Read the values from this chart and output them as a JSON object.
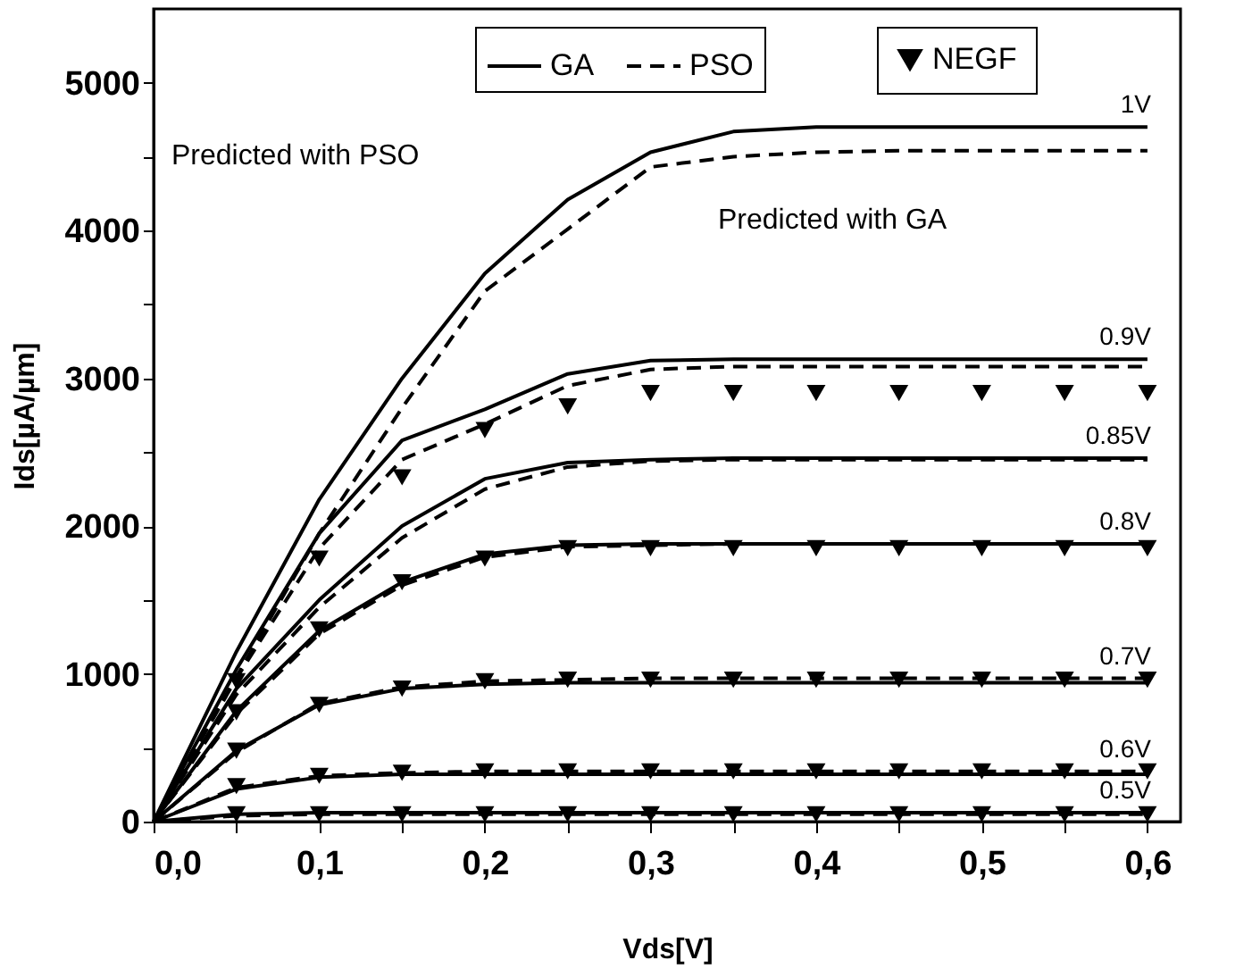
{
  "chart_data": {
    "type": "line",
    "xlabel": "Vds[V]",
    "ylabel": "Ids[µA/µm]",
    "x": [
      0,
      0.05,
      0.1,
      0.15,
      0.2,
      0.25,
      0.3,
      0.35,
      0.4,
      0.45,
      0.5,
      0.55,
      0.6
    ],
    "xlim": [
      0,
      0.62
    ],
    "ylim": [
      0,
      5500
    ],
    "xticks": [
      {
        "value": 0,
        "label": "0,0"
      },
      {
        "value": 0.05,
        "label": null
      },
      {
        "value": 0.1,
        "label": "0,1"
      },
      {
        "value": 0.15,
        "label": null
      },
      {
        "value": 0.2,
        "label": "0,2"
      },
      {
        "value": 0.25,
        "label": null
      },
      {
        "value": 0.3,
        "label": "0,3"
      },
      {
        "value": 0.35,
        "label": null
      },
      {
        "value": 0.4,
        "label": "0,4"
      },
      {
        "value": 0.45,
        "label": null
      },
      {
        "value": 0.5,
        "label": "0,5"
      },
      {
        "value": 0.55,
        "label": null
      },
      {
        "value": 0.6,
        "label": "0,6"
      }
    ],
    "yticks": [
      0,
      {
        "value": 500,
        "label": null
      },
      1000,
      {
        "value": 1500,
        "label": null
      },
      2000,
      {
        "value": 2500,
        "label": null
      },
      3000,
      {
        "value": 3500,
        "label": null
      },
      4000,
      {
        "value": 4500,
        "label": null
      },
      5000
    ],
    "legend": "top right",
    "grid": false,
    "series": [
      {
        "name": "GA",
        "color": "#000000",
        "line_style": "solid",
        "values": [
          0,
          1150,
          2180,
          3000,
          3710,
          4210,
          4530,
          4670,
          4700,
          4700,
          4700,
          4700,
          4700
        ]
      },
      {
        "name": "PSO",
        "color": "#000000",
        "line_style": "dashed",
        "values": [
          0,
          980,
          1950,
          2800,
          3590,
          4010,
          4430,
          4500,
          4530,
          4540,
          4540,
          4540,
          4540
        ]
      },
      {
        "color": "#000000",
        "line_style": "solid",
        "values": [
          0,
          1030,
          1950,
          2580,
          2790,
          3030,
          3120,
          3130,
          3130,
          3130,
          3130,
          3130,
          3130
        ]
      },
      {
        "color": "#000000",
        "line_style": "dashed",
        "values": [
          0,
          970,
          1850,
          2450,
          2690,
          2950,
          3060,
          3080,
          3080,
          3080,
          3080,
          3080,
          3080
        ]
      },
      {
        "color": "#000000",
        "line_style": "solid",
        "values": [
          0,
          900,
          1500,
          2000,
          2320,
          2430,
          2450,
          2460,
          2460,
          2460,
          2460,
          2460,
          2460
        ]
      },
      {
        "color": "#000000",
        "line_style": "dashed",
        "values": [
          0,
          860,
          1450,
          1920,
          2250,
          2400,
          2440,
          2450,
          2450,
          2450,
          2450,
          2450,
          2450
        ]
      },
      {
        "color": "#000000",
        "line_style": "solid",
        "values": [
          0,
          750,
          1290,
          1620,
          1810,
          1870,
          1880,
          1880,
          1880,
          1880,
          1880,
          1880,
          1880
        ]
      },
      {
        "color": "#000000",
        "line_style": "dashed",
        "values": [
          0,
          730,
          1270,
          1600,
          1790,
          1860,
          1870,
          1880,
          1880,
          1880,
          1880,
          1880,
          1880
        ]
      },
      {
        "color": "#000000",
        "line_style": "solid",
        "values": [
          0,
          480,
          790,
          900,
          930,
          940,
          940,
          940,
          940,
          940,
          940,
          940,
          940
        ]
      },
      {
        "color": "#000000",
        "line_style": "dashed",
        "values": [
          0,
          470,
          800,
          910,
          950,
          960,
          970,
          970,
          970,
          970,
          970,
          970,
          970
        ]
      },
      {
        "color": "#000000",
        "line_style": "solid",
        "values": [
          0,
          220,
          300,
          320,
          320,
          320,
          320,
          320,
          320,
          320,
          320,
          320,
          320
        ]
      },
      {
        "color": "#000000",
        "line_style": "dashed",
        "values": [
          0,
          230,
          310,
          330,
          340,
          340,
          340,
          340,
          340,
          340,
          340,
          340,
          340
        ]
      },
      {
        "color": "#000000",
        "line_style": "solid",
        "values": [
          0,
          50,
          60,
          60,
          60,
          60,
          60,
          60,
          60,
          60,
          60,
          60,
          60
        ]
      },
      {
        "color": "#000000",
        "line_style": "dashed",
        "values": [
          0,
          40,
          50,
          50,
          50,
          50,
          50,
          50,
          50,
          50,
          50,
          50,
          50
        ]
      },
      {
        "name": "NEGF",
        "type": "scatter",
        "marker": "triangle",
        "color": "#000000",
        "x": [
          0.05,
          0.1,
          0.15,
          0.2,
          0.25,
          0.3,
          0.35,
          0.4,
          0.45,
          0.5,
          0.55,
          0.6
        ],
        "values": [
          950,
          1780,
          2330,
          2650,
          2810,
          2900,
          2900,
          2900,
          2900,
          2900,
          2900,
          2900
        ]
      },
      {
        "type": "scatter",
        "marker": "triangle",
        "color": "#000000",
        "x": [
          0.05,
          0.1,
          0.15,
          0.2,
          0.25,
          0.3,
          0.35,
          0.4,
          0.45,
          0.5,
          0.55,
          0.6
        ],
        "values": [
          740,
          1300,
          1620,
          1780,
          1850,
          1850,
          1850,
          1850,
          1850,
          1850,
          1850,
          1850
        ]
      },
      {
        "type": "scatter",
        "marker": "triangle",
        "color": "#000000",
        "x": [
          0.05,
          0.1,
          0.15,
          0.2,
          0.25,
          0.3,
          0.35,
          0.4,
          0.45,
          0.5,
          0.55,
          0.6
        ],
        "values": [
          480,
          790,
          900,
          950,
          960,
          960,
          960,
          960,
          960,
          960,
          960,
          960
        ]
      },
      {
        "type": "scatter",
        "marker": "triangle",
        "color": "#000000",
        "x": [
          0.05,
          0.1,
          0.15,
          0.2,
          0.25,
          0.3,
          0.35,
          0.4,
          0.45,
          0.5,
          0.55,
          0.6
        ],
        "values": [
          240,
          310,
          330,
          340,
          340,
          340,
          340,
          340,
          340,
          340,
          340,
          340
        ]
      },
      {
        "type": "scatter",
        "marker": "triangle",
        "color": "#000000",
        "x": [
          0.05,
          0.1,
          0.15,
          0.2,
          0.25,
          0.3,
          0.35,
          0.4,
          0.45,
          0.5,
          0.55,
          0.6
        ],
        "values": [
          50,
          50,
          50,
          50,
          50,
          50,
          50,
          50,
          50,
          50,
          50,
          50
        ]
      }
    ],
    "annotations": [
      {
        "text": "1V",
        "y": 4700
      },
      {
        "text": "0.9V",
        "y": 3130
      },
      {
        "text": "0.85V",
        "y": 2460
      },
      {
        "text": "0.8V",
        "y": 1880
      },
      {
        "text": "0.7V",
        "y": 970
      },
      {
        "text": "0.6V",
        "y": 340
      },
      {
        "text": "0.5V",
        "y": 60
      },
      "Predicted with PSO",
      "Predicted with GA"
    ]
  }
}
